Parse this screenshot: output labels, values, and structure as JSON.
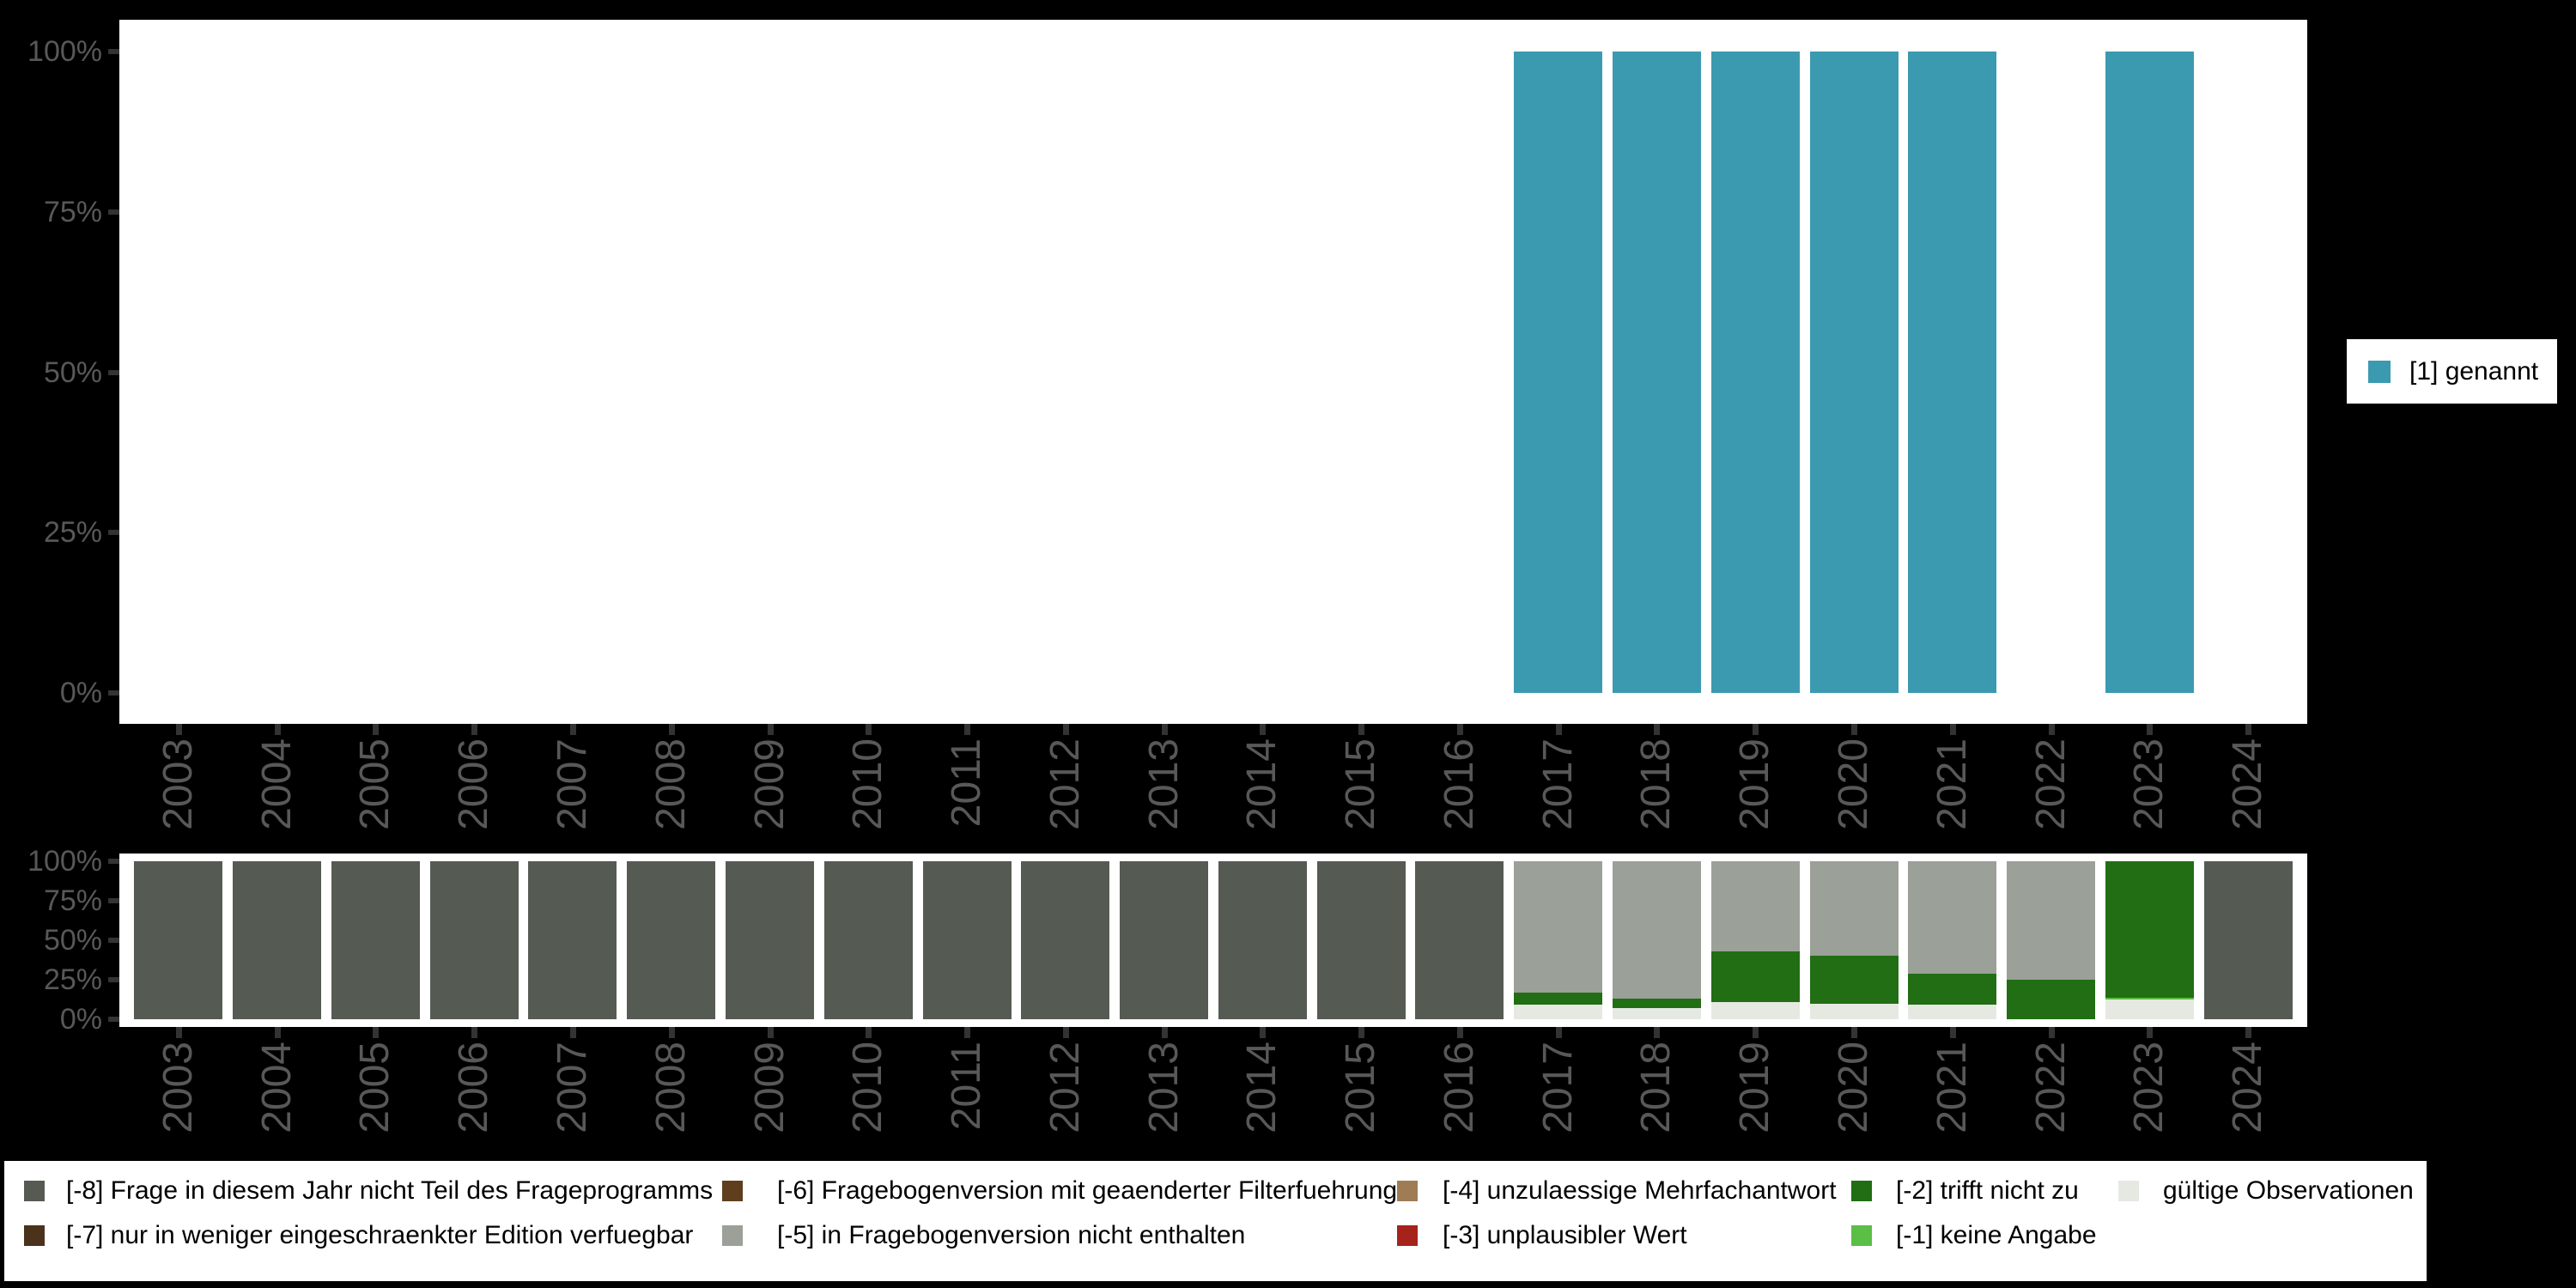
{
  "figure": {
    "background": "#000000",
    "panel_background": "#ffffff"
  },
  "axis": {
    "y_tick_labels": [
      "100%",
      "75%",
      "50%",
      "25%",
      "0%"
    ],
    "y_tick_pcts": [
      100,
      75,
      50,
      25,
      0
    ],
    "text_color": "#585858",
    "tick_color": "#333333"
  },
  "top_legend": {
    "label": "[1] genannt",
    "color": "#3B9AB0"
  },
  "bottom_legend": {
    "items": [
      {
        "key": "-8",
        "label": "[-8] Frage in diesem Jahr nicht Teil des Frageprogramms",
        "color": "#555B53",
        "col": 0,
        "row": 0
      },
      {
        "key": "-7",
        "label": "[-7] nur in weniger eingeschraenkter Edition verfuegbar",
        "color": "#4A321B",
        "col": 0,
        "row": 1
      },
      {
        "key": "-6",
        "label": "[-6] Fragebogenversion mit geaenderter Filterfuehrung",
        "color": "#5F3E1E",
        "col": 1,
        "row": 0
      },
      {
        "key": "-5",
        "label": "[-5] in Fragebogenversion nicht enthalten",
        "color": "#9BA098",
        "col": 1,
        "row": 1
      },
      {
        "key": "-4",
        "label": "[-4] unzulaessige Mehrfachantwort",
        "color": "#9E7D55",
        "col": 2,
        "row": 0
      },
      {
        "key": "-3",
        "label": "[-3] unplausibler Wert",
        "color": "#A5231A",
        "col": 2,
        "row": 1
      },
      {
        "key": "-2",
        "label": "[-2] trifft nicht zu",
        "color": "#216E14",
        "col": 3,
        "row": 0
      },
      {
        "key": "-1",
        "label": "[-1] keine Angabe",
        "color": "#5BBE45",
        "col": 3,
        "row": 1
      },
      {
        "key": "valid",
        "label": "gültige Observationen",
        "color": "#E5E9E2",
        "col": 4,
        "row": 0
      }
    ]
  },
  "chart_data": [
    {
      "type": "bar",
      "title": "",
      "x": [
        "2003",
        "2004",
        "2005",
        "2006",
        "2007",
        "2008",
        "2009",
        "2010",
        "2011",
        "2012",
        "2013",
        "2014",
        "2015",
        "2016",
        "2017",
        "2018",
        "2019",
        "2020",
        "2021",
        "2022",
        "2023",
        "2024"
      ],
      "ylim": [
        0,
        100
      ],
      "yticks": [
        "0%",
        "25%",
        "50%",
        "75%",
        "100%"
      ],
      "grid": false,
      "legend_position": "right",
      "series": [
        {
          "name": "[1] genannt",
          "color": "#3B9AB0",
          "values_pct": [
            null,
            null,
            null,
            null,
            null,
            null,
            null,
            null,
            null,
            null,
            null,
            null,
            null,
            null,
            100,
            100,
            100,
            100,
            100,
            null,
            100,
            null
          ]
        }
      ]
    },
    {
      "type": "stacked-bar",
      "title": "",
      "x": [
        "2003",
        "2004",
        "2005",
        "2006",
        "2007",
        "2008",
        "2009",
        "2010",
        "2011",
        "2012",
        "2013",
        "2014",
        "2015",
        "2016",
        "2017",
        "2018",
        "2019",
        "2020",
        "2021",
        "2022",
        "2023",
        "2024"
      ],
      "ylim": [
        0,
        100
      ],
      "yticks": [
        "0%",
        "25%",
        "50%",
        "75%",
        "100%"
      ],
      "grid": false,
      "legend_position": "bottom",
      "stack_order_bottom_to_top": [
        "valid",
        "-1",
        "-2",
        "-3",
        "-4",
        "-5",
        "-6",
        "-7",
        "-8"
      ],
      "series": [
        {
          "key": "valid",
          "name": "gültige Observationen",
          "color": "#E5E9E2",
          "values_pct": [
            0,
            0,
            0,
            0,
            0,
            0,
            0,
            0,
            0,
            0,
            0,
            0,
            0,
            0,
            9,
            7,
            11,
            10,
            9,
            0,
            12.5,
            0
          ]
        },
        {
          "key": "-1",
          "name": "[-1] keine Angabe",
          "color": "#5BBE45",
          "values_pct": [
            0,
            0,
            0,
            0,
            0,
            0,
            0,
            0,
            0,
            0,
            0,
            0,
            0,
            0,
            0,
            0,
            0,
            0,
            0,
            0,
            1,
            0
          ]
        },
        {
          "key": "-2",
          "name": "[-2] trifft nicht zu",
          "color": "#216E14",
          "values_pct": [
            0,
            0,
            0,
            0,
            0,
            0,
            0,
            0,
            0,
            0,
            0,
            0,
            0,
            0,
            8,
            6,
            32,
            30,
            20,
            25,
            86.5,
            0
          ]
        },
        {
          "key": "-3",
          "name": "[-3] unplausibler Wert",
          "color": "#A5231A",
          "values_pct": [
            0,
            0,
            0,
            0,
            0,
            0,
            0,
            0,
            0,
            0,
            0,
            0,
            0,
            0,
            0,
            0,
            0,
            0,
            0,
            0,
            0,
            0
          ]
        },
        {
          "key": "-4",
          "name": "[-4] unzulaessige Mehrfachantwort",
          "color": "#9E7D55",
          "values_pct": [
            0,
            0,
            0,
            0,
            0,
            0,
            0,
            0,
            0,
            0,
            0,
            0,
            0,
            0,
            0,
            0,
            0,
            0,
            0,
            0,
            0,
            0
          ]
        },
        {
          "key": "-5",
          "name": "[-5] in Fragebogenversion nicht enthalten",
          "color": "#9BA098",
          "values_pct": [
            0,
            0,
            0,
            0,
            0,
            0,
            0,
            0,
            0,
            0,
            0,
            0,
            0,
            0,
            83,
            87,
            57,
            60,
            71,
            75,
            0,
            0
          ]
        },
        {
          "key": "-6",
          "name": "[-6] Fragebogenversion mit geaenderter Filterfuehrung",
          "color": "#5F3E1E",
          "values_pct": [
            0,
            0,
            0,
            0,
            0,
            0,
            0,
            0,
            0,
            0,
            0,
            0,
            0,
            0,
            0,
            0,
            0,
            0,
            0,
            0,
            0,
            0
          ]
        },
        {
          "key": "-7",
          "name": "[-7] nur in weniger eingeschraenkter Edition verfuegbar",
          "color": "#4A321B",
          "values_pct": [
            0,
            0,
            0,
            0,
            0,
            0,
            0,
            0,
            0,
            0,
            0,
            0,
            0,
            0,
            0,
            0,
            0,
            0,
            0,
            0,
            0,
            0
          ]
        },
        {
          "key": "-8",
          "name": "[-8] Frage in diesem Jahr nicht Teil des Frageprogramms",
          "color": "#555B53",
          "values_pct": [
            100,
            100,
            100,
            100,
            100,
            100,
            100,
            100,
            100,
            100,
            100,
            100,
            100,
            100,
            0,
            0,
            0,
            0,
            0,
            0,
            0,
            100
          ]
        }
      ]
    }
  ]
}
